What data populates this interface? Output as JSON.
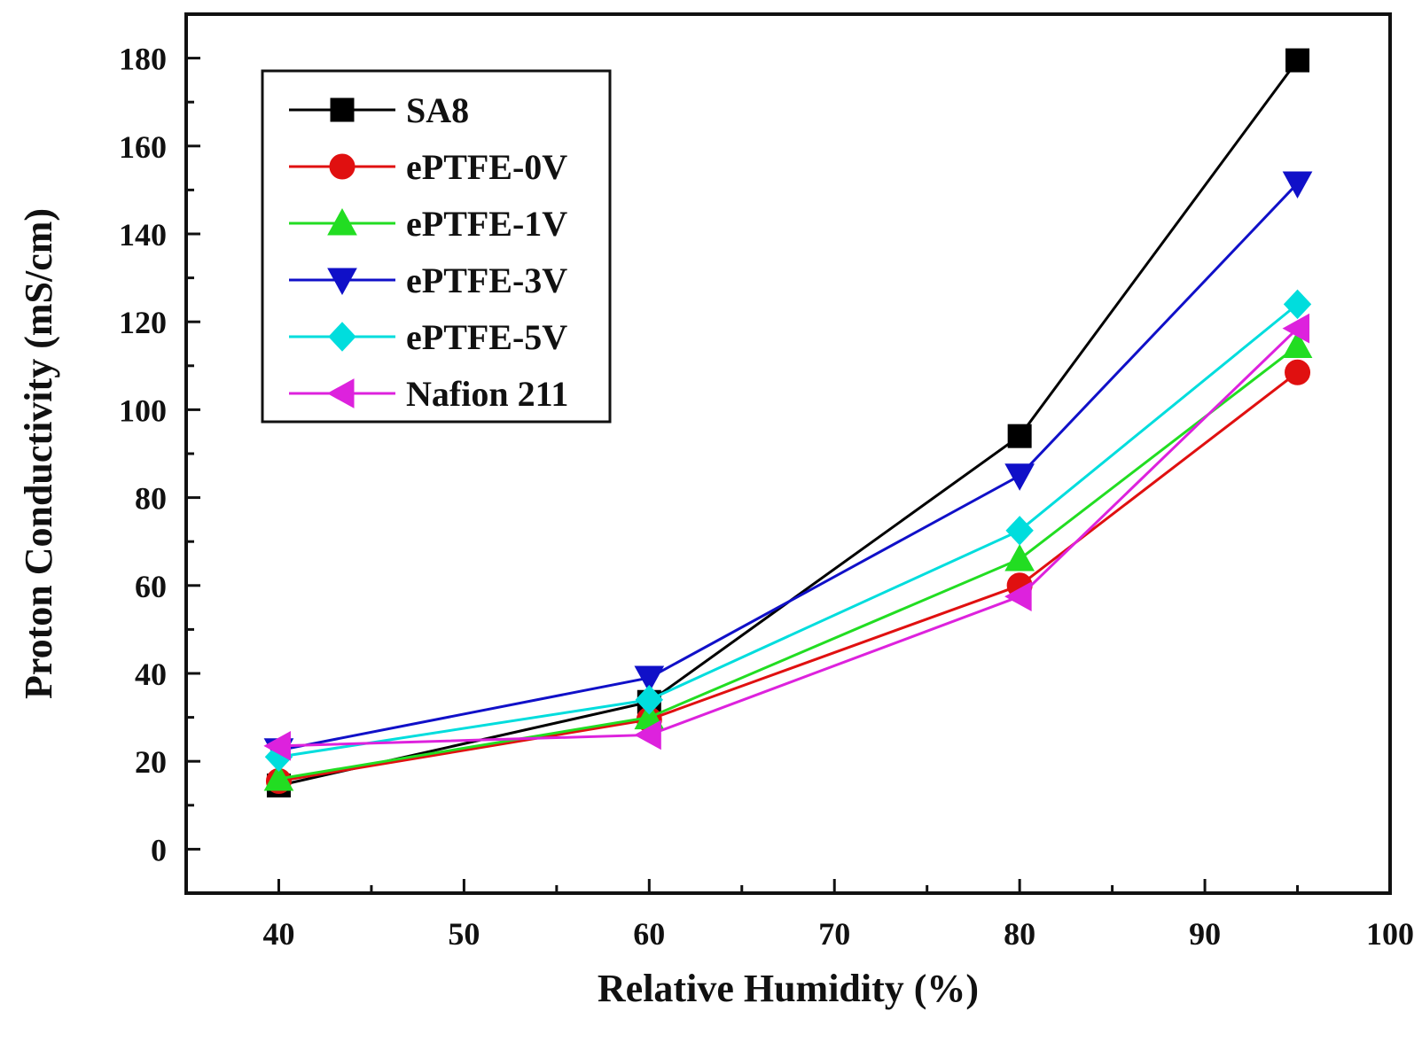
{
  "chart_data": {
    "type": "line",
    "xlabel": "Relative Humidity (%)",
    "ylabel": "Proton Conductivity (mS/cm)",
    "xlim": [
      35,
      100
    ],
    "ylim": [
      -10,
      190
    ],
    "xticks": [
      40,
      50,
      60,
      70,
      80,
      90,
      100
    ],
    "yticks": [
      0,
      20,
      40,
      60,
      80,
      100,
      120,
      140,
      160,
      180
    ],
    "x": [
      40,
      60,
      80,
      95
    ],
    "legend_position": "top-left",
    "series": [
      {
        "name": "SA8",
        "marker": "square",
        "color": "#000000",
        "values": [
          14.5,
          33.5,
          94,
          179.5
        ]
      },
      {
        "name": "ePTFE-0V",
        "marker": "circle",
        "color": "#e01010",
        "values": [
          15.5,
          29.5,
          60,
          108.5
        ]
      },
      {
        "name": "ePTFE-1V",
        "marker": "triangle-up",
        "color": "#22dd22",
        "values": [
          16,
          30,
          66,
          114.5
        ]
      },
      {
        "name": "ePTFE-3V",
        "marker": "triangle-down",
        "color": "#1010c8",
        "values": [
          22.5,
          39,
          85,
          151.5
        ]
      },
      {
        "name": "ePTFE-5V",
        "marker": "diamond",
        "color": "#00dddd",
        "values": [
          21,
          34,
          72.5,
          124
        ]
      },
      {
        "name": "Nafion 211",
        "marker": "triangle-left",
        "color": "#dd22dd",
        "values": [
          23.5,
          26,
          57.5,
          118.5
        ]
      }
    ]
  }
}
